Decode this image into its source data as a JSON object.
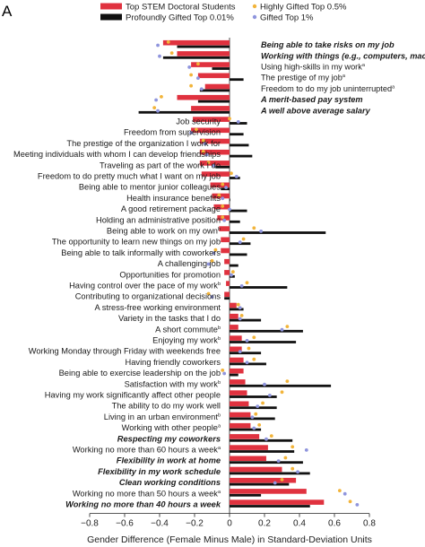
{
  "panel_label": "A",
  "chart_data": {
    "type": "bar",
    "orientation": "horizontal",
    "xlabel": "Gender Difference (Female Minus Male) in Standard-Deviation Units",
    "xlim": [
      -0.8,
      0.8
    ],
    "xticks": [
      -0.8,
      -0.6,
      -0.4,
      -0.2,
      0,
      0.2,
      0.4,
      0.6,
      0.8
    ],
    "xtick_labels": [
      "−0.8",
      "−0.6",
      "−0.4",
      "−0.2",
      "0",
      "0.2",
      "0.4",
      "0.6",
      "0.8"
    ],
    "legend": {
      "placement": "top",
      "entries": [
        {
          "label": "Top STEM Doctoral Students",
          "marker": "bar",
          "color": "#e0323f"
        },
        {
          "label": "Highly Gifted Top 0.5%",
          "marker": "dot",
          "color": "#f2b43a"
        },
        {
          "label": "Profoundly Gifted Top 0.01%",
          "marker": "bar",
          "color": "#111111"
        },
        {
          "label": "Gifted Top 1%",
          "marker": "dot",
          "color": "#8f95dd"
        }
      ]
    },
    "series": [
      {
        "name": "Top STEM Doctoral Students",
        "style": "bar",
        "color": "#e0323f"
      },
      {
        "name": "Profoundly Gifted Top 0.01%",
        "style": "bar",
        "color": "#111111"
      },
      {
        "name": "Highly Gifted Top 0.5%",
        "style": "dot",
        "color": "#f2b43a"
      },
      {
        "name": "Gifted Top 1%",
        "style": "dot",
        "color": "#8f95dd"
      }
    ],
    "items": [
      {
        "label": "Being able to take risks on my job",
        "style": "bold-italic",
        "side": "right",
        "values": [
          -0.38,
          -0.3,
          -0.35,
          -0.41
        ]
      },
      {
        "label": "Working with things (e.g., computers, machines)",
        "sup": "a",
        "style": "bold-italic",
        "side": "right",
        "values": [
          -0.3,
          -0.38,
          -0.33,
          -0.4
        ]
      },
      {
        "label": "Using high-skills in my work",
        "sup": "a",
        "style": "normal",
        "side": "right",
        "values": [
          -0.22,
          -0.1,
          -0.18,
          -0.23
        ]
      },
      {
        "label": "The prestige of my job",
        "sup": "a",
        "style": "normal",
        "side": "right",
        "values": [
          -0.18,
          0.08,
          -0.22,
          -0.18
        ]
      },
      {
        "label": "Freedom to do my job uninterrupted",
        "sup": "a",
        "style": "normal",
        "side": "right",
        "values": [
          -0.14,
          -0.17,
          -0.22,
          -0.16
        ]
      },
      {
        "label": "A merit-based pay system",
        "style": "bold-italic",
        "side": "right",
        "values": [
          -0.3,
          -0.18,
          -0.39,
          -0.42
        ]
      },
      {
        "label": "A well above average salary",
        "style": "bold-italic",
        "side": "right",
        "values": [
          -0.22,
          -0.52,
          -0.43,
          -0.41
        ]
      },
      {
        "label": "Job security",
        "style": "normal",
        "side": "left",
        "values": [
          -0.21,
          0.1,
          0.0,
          0.05
        ]
      },
      {
        "label": "Freedom from supervision",
        "style": "normal",
        "side": "left",
        "values": [
          -0.22,
          0.08,
          -0.19,
          -0.22
        ]
      },
      {
        "label": "The prestige of the organization I work for",
        "style": "normal",
        "side": "left",
        "values": [
          -0.17,
          0.11,
          -0.15,
          -0.14
        ]
      },
      {
        "label": "Meeting individuals with whom I can develop friendships",
        "style": "normal",
        "side": "left",
        "values": [
          -0.17,
          0.13,
          -0.15,
          -0.13
        ]
      },
      {
        "label": "Traveling as part of the work I do",
        "style": "normal",
        "side": "left",
        "values": [
          -0.17,
          -0.08,
          -0.12,
          -0.09
        ]
      },
      {
        "label": "Freedom to do pretty much what I want on my job",
        "style": "normal",
        "side": "left",
        "values": [
          -0.16,
          0.06,
          0.01,
          0.04
        ]
      },
      {
        "label": "Being able to mentor junior colleagues",
        "style": "normal",
        "side": "left",
        "values": [
          -0.11,
          -0.05,
          -0.04,
          -0.02
        ]
      },
      {
        "label": "Health insurance benefits",
        "style": "normal",
        "side": "left",
        "values": [
          -0.1,
          0.0,
          -0.06,
          -0.04
        ]
      },
      {
        "label": "A good retirement package",
        "style": "normal",
        "side": "left",
        "values": [
          -0.09,
          0.1,
          -0.04,
          0.0
        ]
      },
      {
        "label": "Holding an administrative position",
        "style": "normal",
        "side": "left",
        "values": [
          -0.07,
          0.06,
          -0.04,
          -0.03
        ]
      },
      {
        "label": "Being able to work on my own",
        "sup": "b",
        "style": "normal",
        "side": "left",
        "values": [
          -0.06,
          0.55,
          0.14,
          0.18
        ]
      },
      {
        "label": "The opportunity to learn new things on my job",
        "style": "normal",
        "side": "left",
        "values": [
          -0.05,
          0.12,
          0.08,
          0.06
        ]
      },
      {
        "label": "Being able to talk informally with coworkers",
        "style": "normal",
        "side": "left",
        "values": [
          -0.05,
          0.1,
          -0.08,
          -0.09
        ]
      },
      {
        "label": "A challenging job",
        "style": "normal",
        "side": "left",
        "values": [
          -0.03,
          0.05,
          -0.1,
          -0.12
        ]
      },
      {
        "label": "Opportunities for promotion",
        "style": "normal",
        "side": "left",
        "values": [
          -0.03,
          0.03,
          0.02,
          0.01
        ]
      },
      {
        "label": "Having control over the pace of my work",
        "sup": "b",
        "style": "normal",
        "side": "left",
        "values": [
          -0.02,
          0.33,
          0.1,
          0.07
        ]
      },
      {
        "label": "Contributing to organizational decisions",
        "style": "normal",
        "side": "left",
        "values": [
          -0.03,
          -0.03,
          -0.12,
          -0.1
        ]
      },
      {
        "label": "A stress-free working environment",
        "style": "normal",
        "side": "left",
        "values": [
          0.04,
          0.08,
          0.05,
          0.06
        ]
      },
      {
        "label": "Variety in the tasks that I do",
        "style": "normal",
        "side": "left",
        "values": [
          0.05,
          0.18,
          0.07,
          0.06
        ]
      },
      {
        "label": "A short commute",
        "sup": "b",
        "style": "normal",
        "side": "left",
        "values": [
          0.05,
          0.42,
          0.33,
          0.3
        ]
      },
      {
        "label": "Enjoying my work",
        "sup": "b",
        "style": "normal",
        "side": "left",
        "values": [
          0.07,
          0.38,
          0.14,
          0.1
        ]
      },
      {
        "label": "Working Monday through Friday with weekends free",
        "style": "normal",
        "side": "left",
        "values": [
          0.07,
          0.18,
          0.11,
          0.06
        ]
      },
      {
        "label": "Having friendly coworkers",
        "style": "normal",
        "side": "left",
        "values": [
          0.08,
          0.21,
          0.14,
          0.1
        ]
      },
      {
        "label": "Being able to exercise leadership on the job",
        "style": "normal",
        "side": "left",
        "values": [
          0.08,
          0.05,
          -0.04,
          -0.03
        ]
      },
      {
        "label": "Satisfaction with my work",
        "sup": "b",
        "style": "normal",
        "side": "left",
        "values": [
          0.09,
          0.58,
          0.33,
          0.2
        ]
      },
      {
        "label": "Having my work significantly affect other people",
        "style": "normal",
        "side": "left",
        "values": [
          0.1,
          0.27,
          0.3,
          0.23
        ]
      },
      {
        "label": "The ability to do my work well",
        "style": "normal",
        "side": "left",
        "values": [
          0.11,
          0.27,
          0.19,
          0.16
        ]
      },
      {
        "label": "Living in an urban environment",
        "sup": "b",
        "style": "normal",
        "side": "left",
        "values": [
          0.12,
          0.26,
          0.15,
          0.13
        ]
      },
      {
        "label": "Working with other people",
        "sup": "a",
        "style": "normal",
        "side": "left",
        "values": [
          0.12,
          0.18,
          0.17,
          0.14
        ]
      },
      {
        "label": "Respecting my coworkers",
        "style": "bold-italic",
        "side": "left",
        "values": [
          0.17,
          0.36,
          0.24,
          0.21
        ]
      },
      {
        "label": "Working no more than 60 hours a week",
        "sup": "a",
        "style": "normal",
        "side": "left",
        "values": [
          0.22,
          0.37,
          0.36,
          0.44
        ]
      },
      {
        "label": "Flexibility in work at home",
        "style": "bold-italic",
        "side": "left",
        "values": [
          0.21,
          0.42,
          0.32,
          0.28
        ]
      },
      {
        "label": "Flexibility in my work schedule",
        "style": "bold-italic",
        "side": "left",
        "values": [
          0.3,
          0.46,
          0.36,
          0.39
        ]
      },
      {
        "label": "Clean working conditions",
        "style": "bold-italic",
        "side": "left",
        "values": [
          0.38,
          0.34,
          0.3,
          0.26
        ]
      },
      {
        "label": "Working no more than 50 hours a week",
        "sup": "a",
        "style": "normal",
        "side": "left",
        "values": [
          0.44,
          0.18,
          0.63,
          0.66
        ]
      },
      {
        "label": "Working no more than 40 hours a week",
        "style": "bold-italic",
        "side": "left",
        "values": [
          0.54,
          0.46,
          0.69,
          0.73
        ]
      }
    ]
  }
}
